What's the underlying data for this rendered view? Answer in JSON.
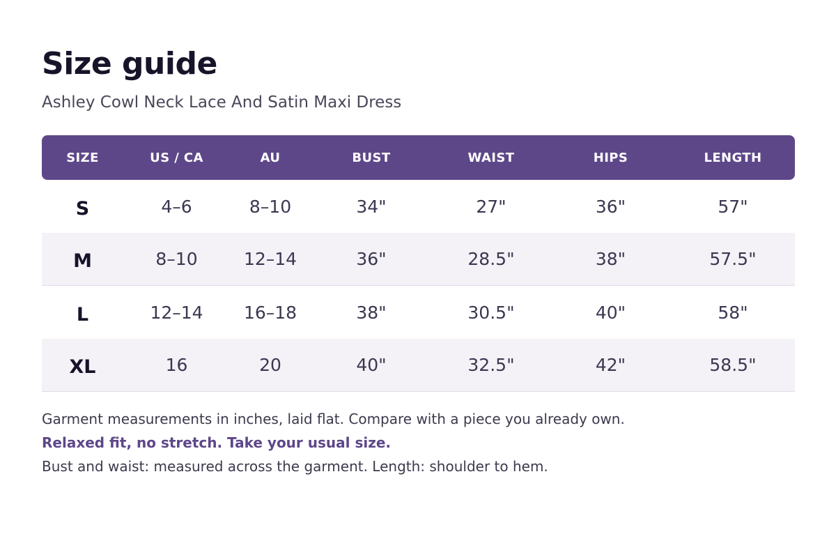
{
  "title": "Size guide",
  "subtitle": "Ashley Cowl Neck Lace And Satin Maxi Dress",
  "table": {
    "headers": [
      "SIZE",
      "US / CA",
      "AU",
      "BUST",
      "WAIST",
      "HIPS",
      "LENGTH"
    ],
    "rows": [
      [
        "S",
        "4–6",
        "8–10",
        "34\"",
        "27\"",
        "36\"",
        "57\""
      ],
      [
        "M",
        "8–10",
        "12–14",
        "36\"",
        "28.5\"",
        "38\"",
        "57.5\""
      ],
      [
        "L",
        "12–14",
        "16–18",
        "38\"",
        "30.5\"",
        "40\"",
        "58\""
      ],
      [
        "XL",
        "16",
        "20",
        "40\"",
        "32.5\"",
        "42\"",
        "58.5\""
      ]
    ]
  },
  "notes": {
    "line1": "Garment measurements in inches, laid flat. Compare with a piece you already own.",
    "line2": "Relaxed fit, no stretch. Take your usual size.",
    "line3": "Bust and waist: measured across the garment.  Length: shoulder to hem."
  },
  "colors": {
    "header_bg": "#5e4789",
    "accent_text": "#5e4789",
    "alt_row_bg": "#f4f2f7"
  }
}
